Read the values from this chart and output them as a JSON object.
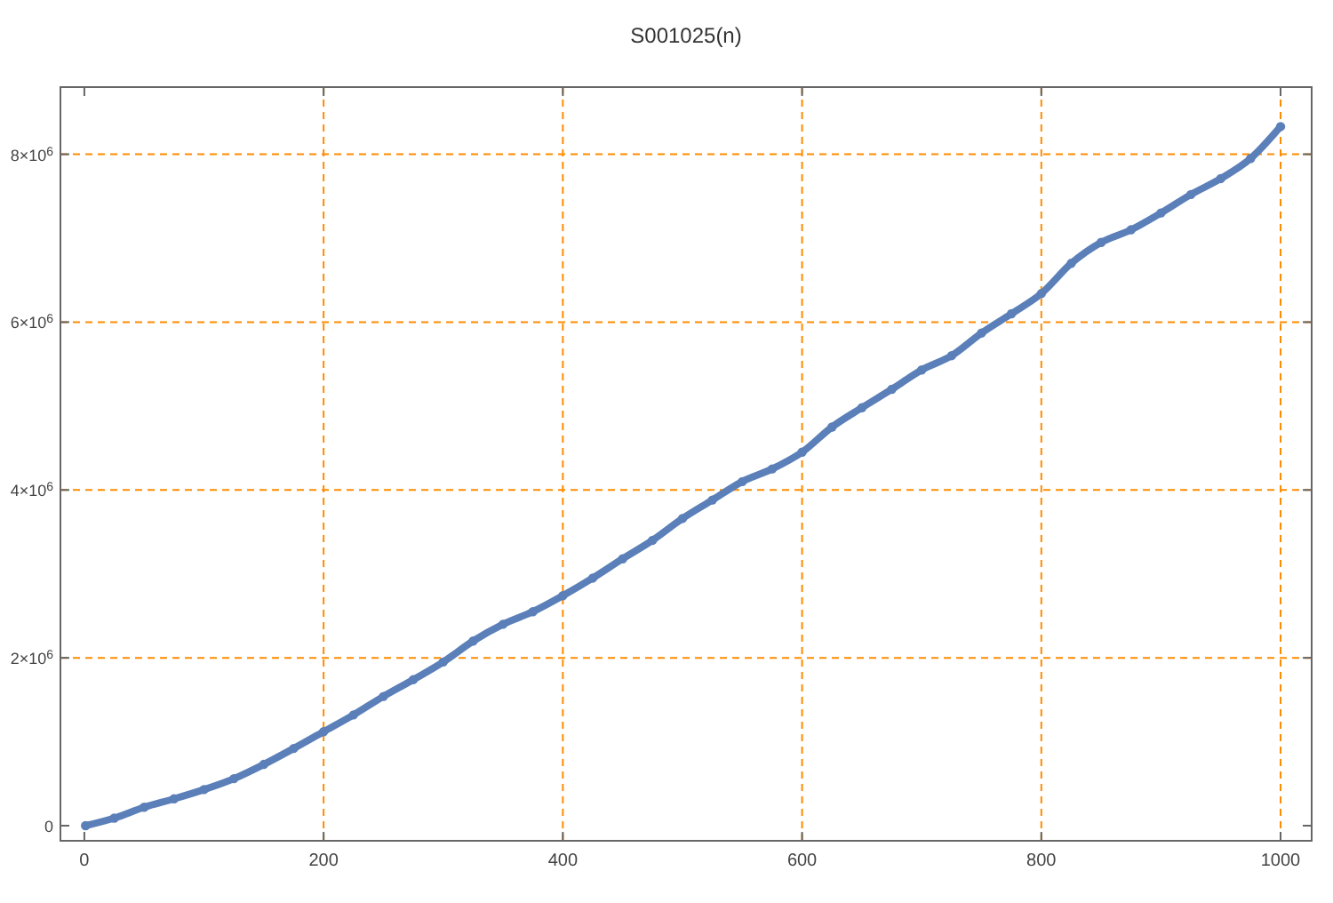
{
  "chart_data": {
    "type": "line",
    "title": "S001025(n)",
    "x": [
      1,
      25,
      50,
      75,
      100,
      125,
      150,
      175,
      200,
      225,
      250,
      275,
      300,
      325,
      350,
      375,
      400,
      425,
      450,
      475,
      500,
      525,
      550,
      575,
      600,
      625,
      650,
      675,
      700,
      725,
      750,
      775,
      800,
      825,
      850,
      875,
      900,
      925,
      950,
      975,
      1000
    ],
    "series": [
      {
        "color": "#5b7fb8",
        "values": [
          0,
          90000,
          220000,
          320000,
          430000,
          560000,
          730000,
          920000,
          1120000,
          1320000,
          1540000,
          1740000,
          1950000,
          2200000,
          2400000,
          2550000,
          2740000,
          2950000,
          3180000,
          3400000,
          3660000,
          3880000,
          4100000,
          4250000,
          4450000,
          4750000,
          4980000,
          5200000,
          5430000,
          5600000,
          5870000,
          6100000,
          6340000,
          6700000,
          6950000,
          7100000,
          7300000,
          7520000,
          7710000,
          7950000,
          8330000
        ]
      }
    ],
    "marker": "circle",
    "grid": true,
    "xlim": [
      -20,
      1026
    ],
    "ylim": [
      -180000,
      8800000
    ],
    "xticks": [
      0,
      200,
      400,
      600,
      800,
      1000
    ],
    "yticks": [
      {
        "value": 0,
        "label": "0"
      },
      {
        "value": 2000000,
        "label": "2×10$^{6}$"
      },
      {
        "value": 4000000,
        "label": "4×10$^{6}$"
      },
      {
        "value": 6000000,
        "label": "6×10$^{6}$"
      },
      {
        "value": 8000000,
        "label": "8×10$^{6}$"
      }
    ]
  }
}
